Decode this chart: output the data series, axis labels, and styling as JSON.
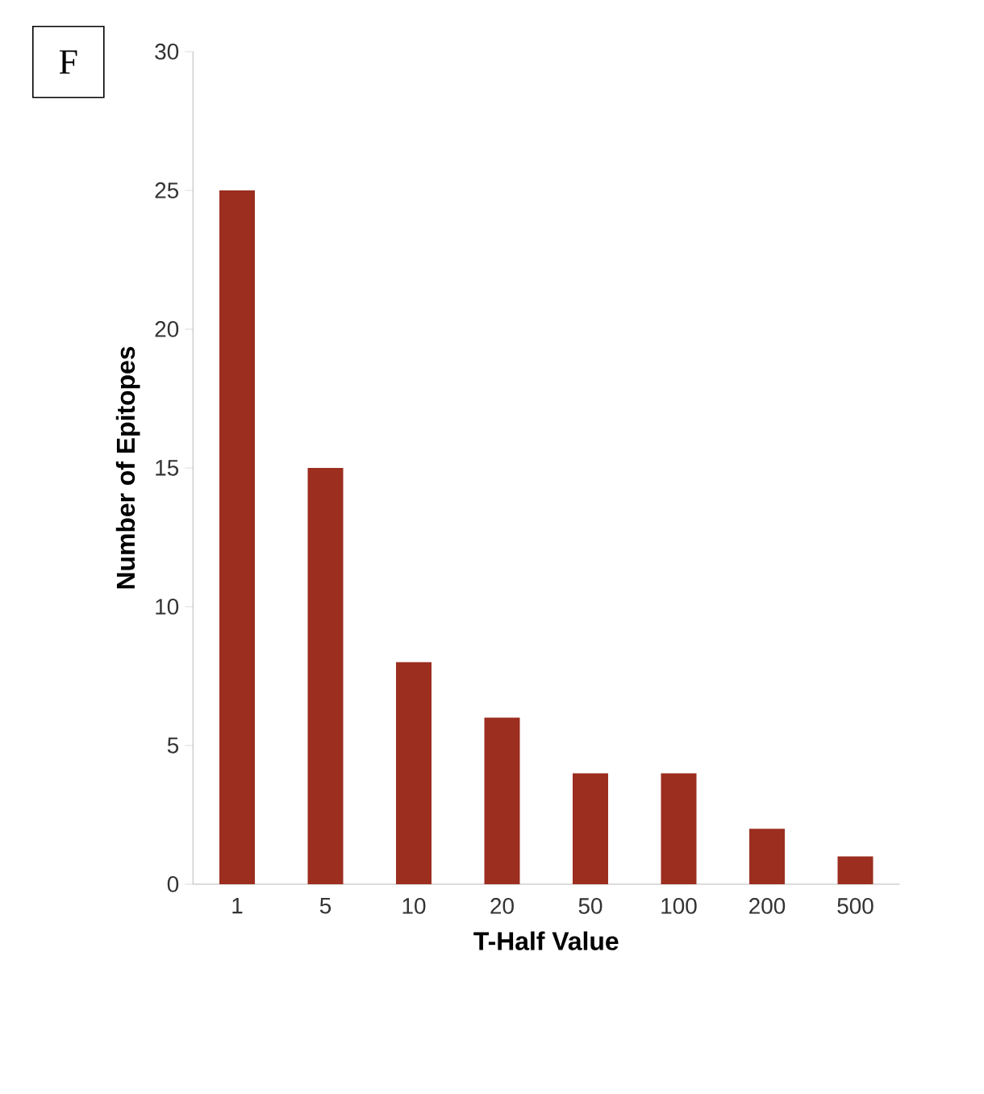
{
  "chart_data": {
    "type": "bar",
    "xlabel": "T-Half Value",
    "ylabel": "Number of Epitopes",
    "categories": [
      "1",
      "5",
      "10",
      "20",
      "50",
      "100",
      "200",
      "500"
    ],
    "values": [
      25,
      15,
      8,
      6,
      4,
      4,
      2,
      1
    ],
    "color": "#9c2e20",
    "ylim": [
      0,
      30
    ],
    "yticks": [
      0,
      5,
      10,
      15,
      20,
      25,
      30
    ],
    "annotations": [
      "F"
    ]
  }
}
